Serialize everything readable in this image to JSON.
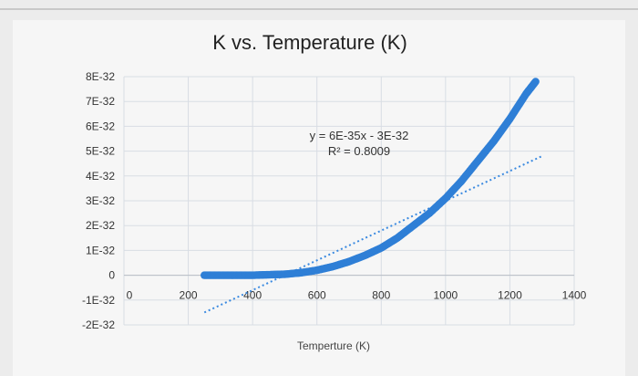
{
  "chart_data": {
    "type": "scatter",
    "title": "K vs. Temperature (K)",
    "xlabel": "Temperture (K)",
    "ylabel": "",
    "xlim": [
      0,
      1400
    ],
    "ylim": [
      -2e-32,
      8e-32
    ],
    "x_ticks": [
      "0",
      "200",
      "400",
      "600",
      "800",
      "1000",
      "1200",
      "1400"
    ],
    "y_ticks": [
      "8E-32",
      "7E-32",
      "6E-32",
      "5E-32",
      "4E-32",
      "3E-32",
      "2E-32",
      "1E-32",
      "0",
      "-1E-32",
      "-2E-32"
    ],
    "grid": true,
    "trendline": {
      "type": "linear",
      "equation": "y = 6E-35x - 3E-32",
      "r_squared": "R² = 0.8009",
      "slope": 6e-35,
      "intercept": -3e-32
    },
    "series": [
      {
        "color": "#2f7fd6",
        "points": [
          [
            250,
            0
          ],
          [
            300,
            0
          ],
          [
            350,
            0
          ],
          [
            400,
            0
          ],
          [
            450,
            2e-34
          ],
          [
            500,
            4e-34
          ],
          [
            550,
            1e-33
          ],
          [
            600,
            2e-33
          ],
          [
            650,
            3.5e-33
          ],
          [
            700,
            5.5e-33
          ],
          [
            750,
            8e-33
          ],
          [
            800,
            1.1e-32
          ],
          [
            850,
            1.5e-32
          ],
          [
            900,
            2e-32
          ],
          [
            950,
            2.5e-32
          ],
          [
            1000,
            3.1e-32
          ],
          [
            1050,
            3.8e-32
          ],
          [
            1100,
            4.6e-32
          ],
          [
            1150,
            5.4e-32
          ],
          [
            1200,
            6.3e-32
          ],
          [
            1250,
            7.3e-32
          ],
          [
            1280,
            7.8e-32
          ]
        ]
      }
    ]
  }
}
